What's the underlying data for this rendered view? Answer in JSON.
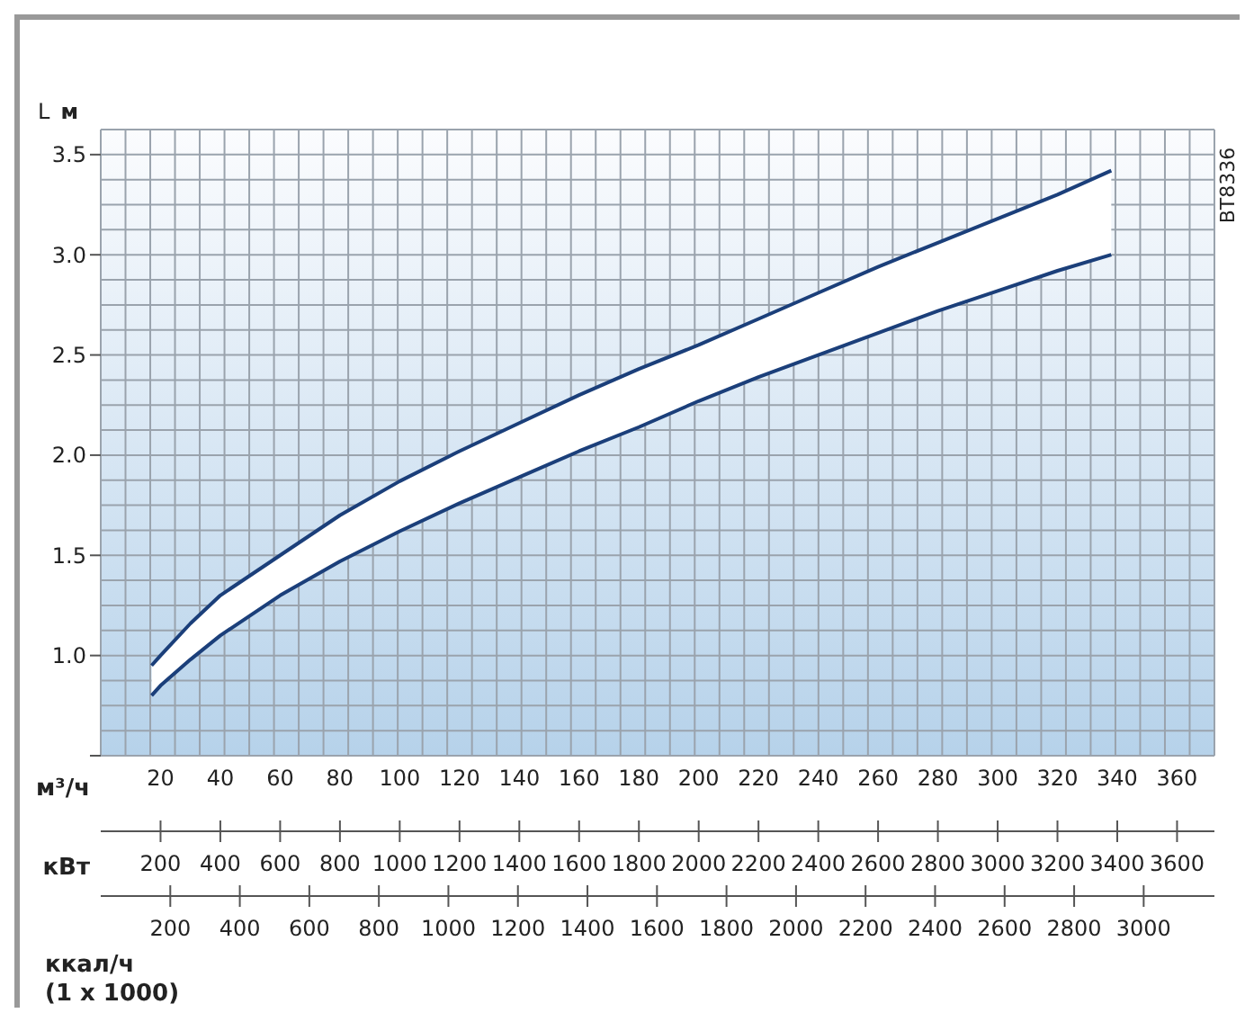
{
  "chart_data": {
    "type": "line",
    "xlabel": "м³/ч",
    "ylabel": "L м",
    "x2label": "кВт",
    "annotations": [
      "BT8336",
      "ккал/ч\n(1 x 1000)",
      "200",
      "400",
      "600",
      "800",
      "1000",
      "1200",
      "1400",
      "1600",
      "1800",
      "2000",
      "2200",
      "2400",
      "2600",
      "2800",
      "3000"
    ],
    "x": [
      17,
      20,
      30,
      40,
      60,
      80,
      100,
      120,
      140,
      160,
      180,
      200,
      220,
      240,
      260,
      280,
      300,
      320,
      338
    ],
    "series": [
      {
        "color": "#1b3f7a",
        "values": [
          0.95,
          1.0,
          1.16,
          1.3,
          1.5,
          1.7,
          1.87,
          2.02,
          2.16,
          2.3,
          2.43,
          2.55,
          2.68,
          2.81,
          2.94,
          3.06,
          3.18,
          3.3,
          3.42
        ],
        "upper": [
          0.95,
          1.0,
          1.16,
          1.3,
          1.5,
          1.7,
          1.87,
          2.02,
          2.16,
          2.3,
          2.43,
          2.55,
          2.68,
          2.81,
          2.94,
          3.06,
          3.18,
          3.3,
          3.42
        ],
        "lower": [
          0.8,
          0.85,
          0.98,
          1.1,
          1.3,
          1.47,
          1.62,
          1.76,
          1.89,
          2.02,
          2.14,
          2.27,
          2.39,
          2.5,
          2.61,
          2.72,
          2.82,
          2.92,
          3.0
        ]
      },
      {
        "color": "#1b3f7a",
        "values": [
          0.8,
          0.85,
          0.98,
          1.1,
          1.3,
          1.47,
          1.62,
          1.76,
          1.89,
          2.02,
          2.14,
          2.27,
          2.39,
          2.5,
          2.61,
          2.72,
          2.82,
          2.92,
          3.0
        ]
      }
    ],
    "xlim": [
      0,
      372.5
    ],
    "xticks": [
      20,
      40,
      60,
      80,
      100,
      120,
      140,
      160,
      180,
      200,
      220,
      240,
      260,
      280,
      300,
      320,
      340,
      360
    ],
    "x2lim": [
      0,
      3725
    ],
    "x2ticks": [
      200,
      400,
      600,
      800,
      1000,
      1200,
      1400,
      1600,
      1800,
      2000,
      2200,
      2400,
      2600,
      2800,
      3000,
      3200,
      3400,
      3600
    ],
    "ylim": [
      0.5,
      3.625
    ],
    "yticks": [
      {
        "value": 0.5,
        "label": null
      },
      {
        "value": 1,
        "label": "1.0"
      },
      1.5,
      {
        "value": 2,
        "label": "2.0"
      },
      2.5,
      {
        "value": 3,
        "label": "3.0"
      },
      3.5
    ],
    "grid": true,
    "marker": "none",
    "line_style": "solid"
  }
}
